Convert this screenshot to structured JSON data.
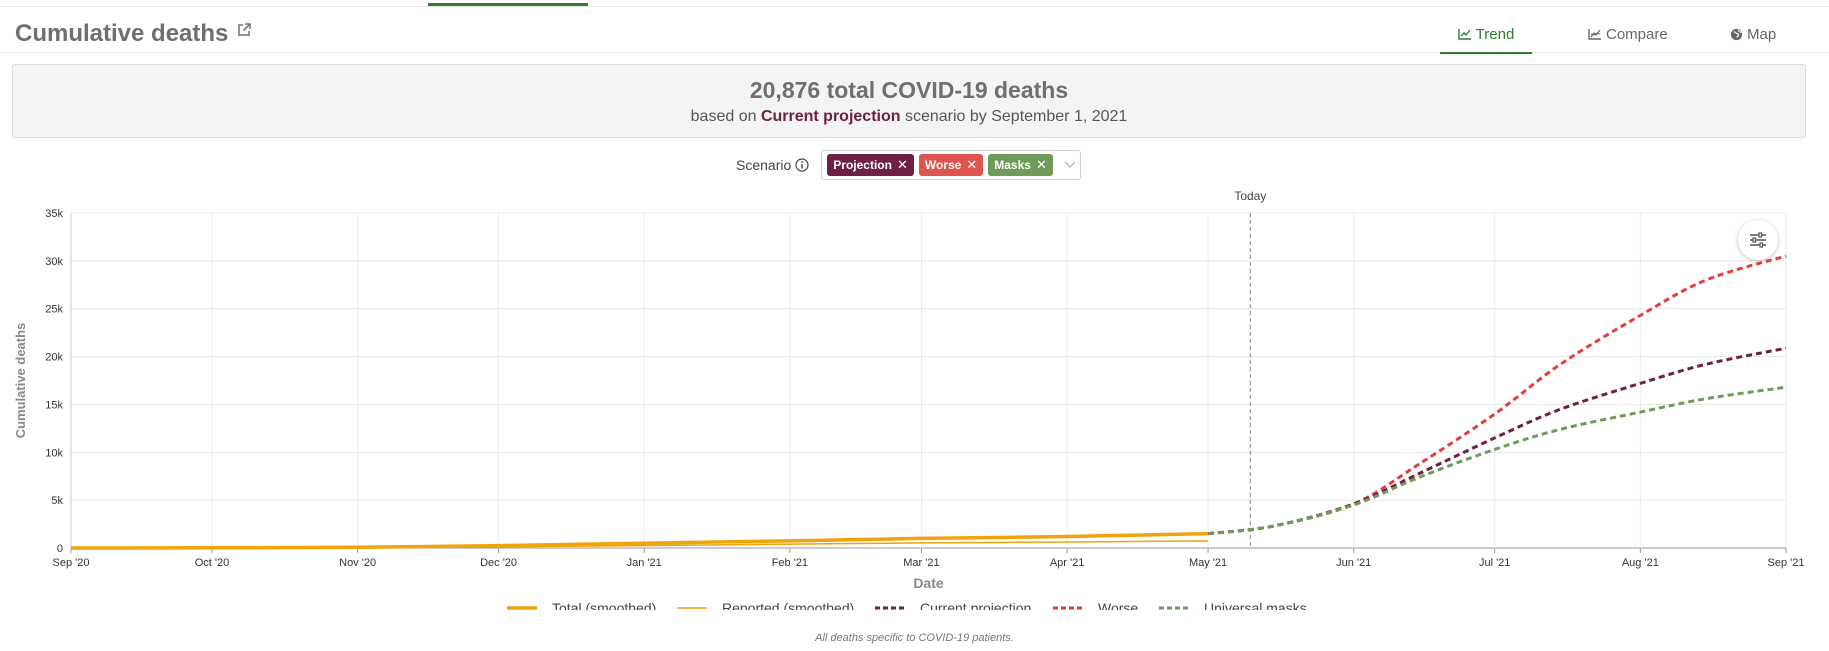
{
  "header": {
    "title": "Cumulative deaths",
    "tabs": [
      {
        "label": "Trend",
        "icon": "line-chart-icon",
        "active": true
      },
      {
        "label": "Compare",
        "icon": "compare-chart-icon",
        "active": false
      },
      {
        "label": "Map",
        "icon": "globe-icon",
        "active": false
      }
    ]
  },
  "summary": {
    "total_value": "20,876",
    "total_suffix": "total COVID-19 deaths",
    "prefix": "based on",
    "scenario_name": "Current projection",
    "suffix": "scenario by September 1, 2021"
  },
  "scenario_filter": {
    "label": "Scenario",
    "chips": [
      {
        "label": "Projection",
        "color": "#6d1f44"
      },
      {
        "label": "Worse",
        "color": "#e05552"
      },
      {
        "label": "Masks",
        "color": "#6e9a5a"
      }
    ]
  },
  "chart_data": {
    "type": "line",
    "ylabel": "Cumulative deaths",
    "xlabel": "Date",
    "ylim": [
      0,
      35000
    ],
    "yticks": [
      0,
      5000,
      10000,
      15000,
      20000,
      25000,
      30000,
      35000
    ],
    "ytick_labels": [
      "0",
      "5k",
      "10k",
      "15k",
      "20k",
      "25k",
      "30k",
      "35k"
    ],
    "xlim": [
      "2020-09-01",
      "2021-09-01"
    ],
    "xticks": [
      "2020-09-01",
      "2020-10-01",
      "2020-11-01",
      "2020-12-01",
      "2021-01-01",
      "2021-02-01",
      "2021-03-01",
      "2021-04-01",
      "2021-05-01",
      "2021-06-01",
      "2021-07-01",
      "2021-08-01",
      "2021-09-01"
    ],
    "xtick_labels": [
      "Sep '20",
      "Oct '20",
      "Nov '20",
      "Dec '20",
      "Jan '21",
      "Feb '21",
      "Mar '21",
      "Apr '21",
      "May '21",
      "Jun '21",
      "Jul '21",
      "Aug '21",
      "Sep '21"
    ],
    "today": {
      "date": "2021-05-10",
      "label": "Today"
    },
    "grid": true,
    "legend_position": "bottom",
    "series": [
      {
        "name": "Total (smoothed)",
        "color": "#f0a30a",
        "style": "solid-thick",
        "points": [
          [
            "2020-09-01",
            0
          ],
          [
            "2020-10-01",
            20
          ],
          [
            "2020-11-01",
            80
          ],
          [
            "2020-12-01",
            250
          ],
          [
            "2021-01-01",
            500
          ],
          [
            "2021-02-01",
            750
          ],
          [
            "2021-03-01",
            1000
          ],
          [
            "2021-04-01",
            1200
          ],
          [
            "2021-05-01",
            1500
          ]
        ]
      },
      {
        "name": "Reported (smoothed)",
        "color": "#f0a30a",
        "style": "solid-thin",
        "points": [
          [
            "2020-09-01",
            0
          ],
          [
            "2020-10-01",
            10
          ],
          [
            "2020-11-01",
            40
          ],
          [
            "2020-12-01",
            130
          ],
          [
            "2021-01-01",
            260
          ],
          [
            "2021-02-01",
            400
          ],
          [
            "2021-03-01",
            530
          ],
          [
            "2021-04-01",
            630
          ],
          [
            "2021-05-01",
            750
          ]
        ]
      },
      {
        "name": "Current projection",
        "color": "#6d1f44",
        "style": "dashed",
        "points": [
          [
            "2021-05-01",
            1500
          ],
          [
            "2021-05-15",
            2300
          ],
          [
            "2021-06-01",
            4600
          ],
          [
            "2021-06-15",
            7800
          ],
          [
            "2021-07-01",
            11500
          ],
          [
            "2021-07-15",
            14500
          ],
          [
            "2021-08-01",
            17200
          ],
          [
            "2021-08-15",
            19200
          ],
          [
            "2021-09-01",
            20876
          ]
        ]
      },
      {
        "name": "Worse",
        "color": "#e0403d",
        "style": "dashed",
        "points": [
          [
            "2021-05-01",
            1500
          ],
          [
            "2021-05-15",
            2300
          ],
          [
            "2021-06-01",
            4600
          ],
          [
            "2021-06-15",
            8800
          ],
          [
            "2021-07-01",
            14000
          ],
          [
            "2021-07-15",
            19200
          ],
          [
            "2021-08-01",
            24300
          ],
          [
            "2021-08-15",
            28000
          ],
          [
            "2021-09-01",
            30500
          ]
        ]
      },
      {
        "name": "Universal masks",
        "color": "#6e9a5a",
        "style": "dashed",
        "points": [
          [
            "2021-05-01",
            1500
          ],
          [
            "2021-05-15",
            2300
          ],
          [
            "2021-06-01",
            4500
          ],
          [
            "2021-06-15",
            7400
          ],
          [
            "2021-07-01",
            10300
          ],
          [
            "2021-07-15",
            12400
          ],
          [
            "2021-08-01",
            14200
          ],
          [
            "2021-08-15",
            15600
          ],
          [
            "2021-09-01",
            16800
          ]
        ]
      }
    ]
  },
  "footnote": "All deaths specific to COVID-19 patients."
}
